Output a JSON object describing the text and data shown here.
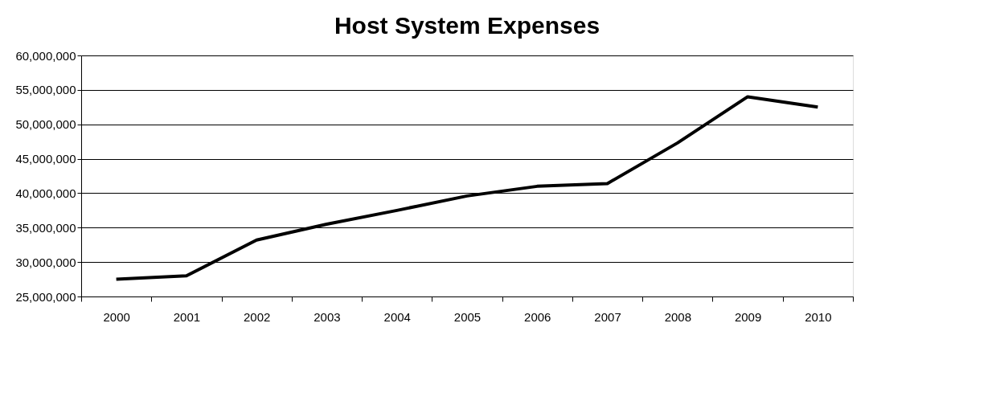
{
  "chart_data": {
    "type": "line",
    "title": "Host System Expenses",
    "categories": [
      "2000",
      "2001",
      "2002",
      "2003",
      "2004",
      "2005",
      "2006",
      "2007",
      "2008",
      "2009",
      "2010"
    ],
    "series": [
      {
        "color": "#000000",
        "values": [
          27500000,
          28000000,
          33200000,
          35500000,
          37500000,
          39600000,
          41000000,
          41400000,
          47300000,
          54000000,
          52500000
        ]
      }
    ],
    "ylim": [
      25000000,
      60000000
    ],
    "yticks": [
      {
        "value": 25000000,
        "label": "25,000,000"
      },
      {
        "value": 30000000,
        "label": "30,000,000"
      },
      {
        "value": 35000000,
        "label": "35,000,000"
      },
      {
        "value": 40000000,
        "label": "40,000,000"
      },
      {
        "value": 45000000,
        "label": "45,000,000"
      },
      {
        "value": 50000000,
        "label": "50,000,000"
      },
      {
        "value": 55000000,
        "label": "55,000,000"
      },
      {
        "value": 60000000,
        "label": "60,000,000"
      }
    ],
    "grid": "y",
    "marker": "none",
    "line_style": "solid"
  }
}
